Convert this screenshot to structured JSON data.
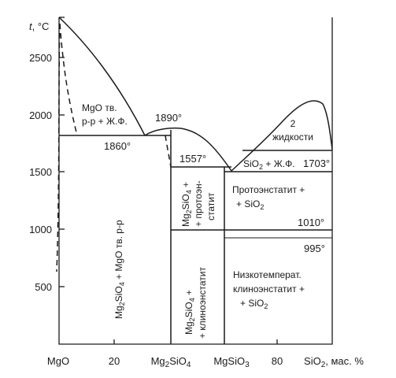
{
  "axis": {
    "y_title_t": "t",
    "y_title_unit": ", °C",
    "y_ticks": [
      "2500",
      "2000",
      "1500",
      "1000",
      "500"
    ],
    "x_ticks": {
      "mgo": "MgO",
      "p20": "20",
      "mg2sio4_base": "Mg",
      "mg2sio4_sub": "2",
      "mg2sio4_rest": "SiO",
      "mg2sio4_sub2": "4",
      "mgsio3_base": "MgSiO",
      "mgsio3_sub": "3",
      "p80": "80",
      "sio2_base": "SiO",
      "sio2_sub": "2",
      "sio2_rest": ", мас. %"
    }
  },
  "temps": {
    "t1890": "1890°",
    "t1860": "1860°",
    "t1557": "1557°",
    "t1703": "1703°",
    "t1010": "1010°",
    "t995": "995°"
  },
  "regions": {
    "mgo_liq_l1": "MgO тв.",
    "mgo_liq_l2": "р-р + Ж.Ф.",
    "two_liquids_l1": "2",
    "two_liquids_l2": "жидкости",
    "sio2_liq_a": "SiO",
    "sio2_liq_sub": "2",
    "sio2_liq_b": " + Ж.Ф.",
    "protoenst_l1": "Протоэнстатит +",
    "protoenst_l2a": "+ SiO",
    "protoenst_l2sub": "2",
    "low_clino_l1": "Низкотемперат.",
    "low_clino_l2": "клиноэнстатит +",
    "low_clino_l3a": "+ SiO",
    "low_clino_l3sub": "2",
    "left_vert_a": "Mg",
    "left_vert_sub1": "2",
    "left_vert_b": "SiO",
    "left_vert_sub2": "4",
    "left_vert_c": " + MgO тв. р-р",
    "mid_upper_l1a": "Mg",
    "mid_upper_l1sub": "2",
    "mid_upper_l1b": "SiO",
    "mid_upper_l1sub2": "4",
    "mid_upper_l1c": " +",
    "mid_upper_l2": "+ протоэн-",
    "mid_upper_l3": "статит",
    "mid_lower_l1a": "Mg",
    "mid_lower_l1sub": "2",
    "mid_lower_l1b": "SiO",
    "mid_lower_l1sub2": "4",
    "mid_lower_l1c": " +",
    "mid_lower_l2": "+ клиноэнстатит"
  }
}
